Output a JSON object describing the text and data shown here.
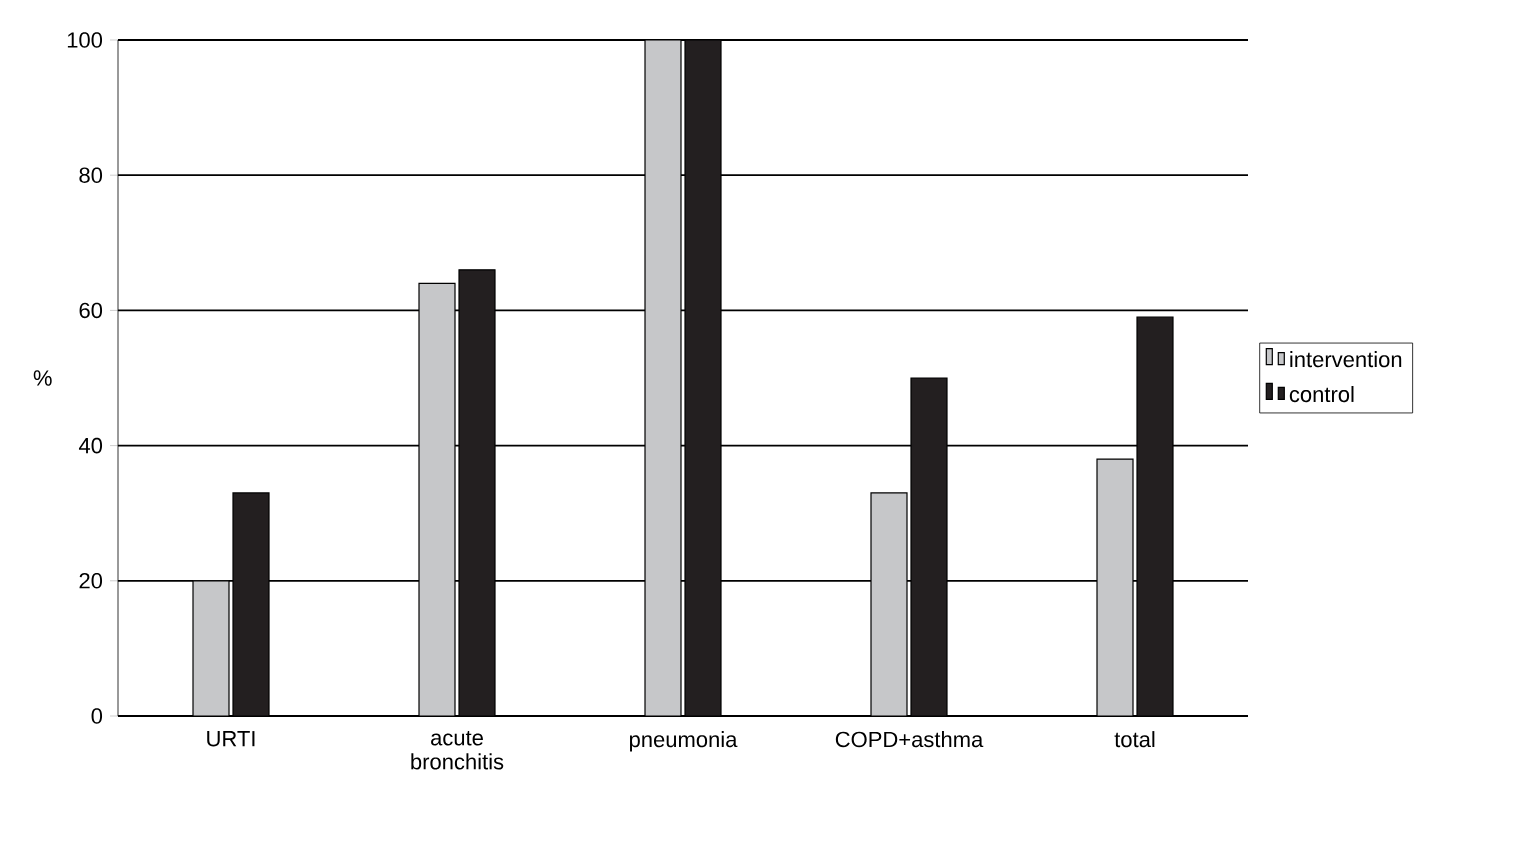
{
  "chart_data": {
    "type": "bar",
    "ylabel": "%",
    "categories": [
      "URTI",
      "acute\nbronchitis",
      "pneumonia",
      "COPD+asthma",
      "total"
    ],
    "series": [
      {
        "name": "intervention",
        "color": "#c6c7c9",
        "values": [
          20,
          64,
          100,
          33,
          38
        ]
      },
      {
        "name": "control",
        "color": "#231f20",
        "values": [
          33,
          66,
          100,
          50,
          59
        ]
      }
    ],
    "ylim": [
      0,
      100
    ],
    "yticks": [
      0,
      20,
      40,
      60,
      80,
      100
    ],
    "grid": "y",
    "legend": "right"
  }
}
